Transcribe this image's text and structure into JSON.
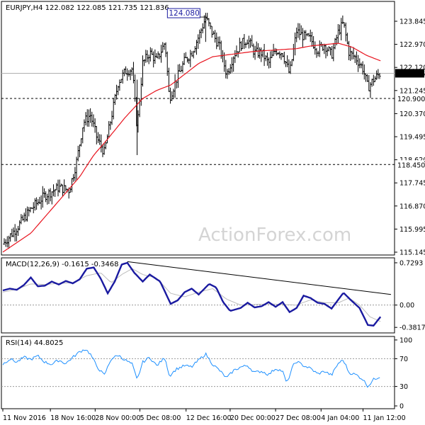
{
  "chart_data": [
    {
      "type": "candlestick",
      "title": "EURJPY,H4  122.082 122.085 121.735 121.836",
      "watermark": "ActionForex.com",
      "ylim": [
        115.145,
        124.45
      ],
      "yticks": [
        "123.845",
        "122.970",
        "122.120",
        "121.245",
        "120.370",
        "119.495",
        "118.620",
        "117.745",
        "116.870",
        "115.995",
        "115.145"
      ],
      "price_labels": {
        "last": "121.836",
        "high_label": "124.080",
        "support1": "120.900",
        "support2": "118.450"
      },
      "levels": {
        "high": 124.08,
        "support1": 120.9,
        "support2": 118.45,
        "last": 121.836
      },
      "ma_series": {
        "name": "",
        "color": "#e8141e",
        "points": [
          [
            0,
            115.2
          ],
          [
            40,
            115.9
          ],
          [
            80,
            117.1
          ],
          [
            110,
            118.0
          ],
          [
            130,
            118.8
          ],
          [
            150,
            119.4
          ],
          [
            175,
            120.2
          ],
          [
            200,
            120.9
          ],
          [
            220,
            121.2
          ],
          [
            240,
            121.4
          ],
          [
            260,
            121.8
          ],
          [
            280,
            122.2
          ],
          [
            300,
            122.45
          ],
          [
            330,
            122.55
          ],
          [
            360,
            122.65
          ],
          [
            390,
            122.7
          ],
          [
            420,
            122.75
          ],
          [
            440,
            122.85
          ],
          [
            460,
            122.9
          ],
          [
            480,
            122.95
          ],
          [
            500,
            122.8
          ],
          [
            520,
            122.5
          ],
          [
            540,
            122.3
          ]
        ]
      },
      "price_path": [
        [
          0,
          115.5
        ],
        [
          20,
          116.1
        ],
        [
          40,
          116.8
        ],
        [
          60,
          117.3
        ],
        [
          80,
          117.6
        ],
        [
          95,
          117.5
        ],
        [
          105,
          118.5
        ],
        [
          115,
          120.0
        ],
        [
          125,
          120.3
        ],
        [
          135,
          119.4
        ],
        [
          145,
          118.9
        ],
        [
          155,
          120.2
        ],
        [
          165,
          121.5
        ],
        [
          175,
          121.9
        ],
        [
          185,
          122.0
        ],
        [
          192,
          119.8
        ],
        [
          200,
          122.2
        ],
        [
          210,
          122.6
        ],
        [
          220,
          122.3
        ],
        [
          232,
          123.0
        ],
        [
          238,
          120.9
        ],
        [
          248,
          121.6
        ],
        [
          260,
          122.3
        ],
        [
          270,
          122.6
        ],
        [
          280,
          123.2
        ],
        [
          290,
          123.9
        ],
        [
          300,
          123.3
        ],
        [
          310,
          122.8
        ],
        [
          320,
          121.8
        ],
        [
          330,
          122.5
        ],
        [
          340,
          122.9
        ],
        [
          350,
          123.1
        ],
        [
          360,
          122.6
        ],
        [
          370,
          122.6
        ],
        [
          380,
          122.2
        ],
        [
          390,
          122.7
        ],
        [
          400,
          122.6
        ],
        [
          410,
          121.8
        ],
        [
          420,
          123.4
        ],
        [
          430,
          123.2
        ],
        [
          440,
          123.1
        ],
        [
          450,
          122.7
        ],
        [
          460,
          122.9
        ],
        [
          470,
          122.5
        ],
        [
          480,
          123.4
        ],
        [
          487,
          123.7
        ],
        [
          495,
          122.6
        ],
        [
          505,
          122.4
        ],
        [
          515,
          122.0
        ],
        [
          522,
          121.3
        ],
        [
          530,
          121.6
        ],
        [
          540,
          121.85
        ]
      ]
    },
    {
      "type": "line",
      "title": "MACD(12,26,9) -0.1615 -0.3468",
      "ylim": [
        -0.45,
        0.78
      ],
      "yticks": [
        "0.7293",
        "0.00",
        "-0.3817"
      ],
      "macd_color": "#1a1aa0",
      "signal_color": "#bbbbbb",
      "macd": [
        [
          0,
          0.25
        ],
        [
          10,
          0.28
        ],
        [
          20,
          0.26
        ],
        [
          30,
          0.34
        ],
        [
          40,
          0.47
        ],
        [
          50,
          0.32
        ],
        [
          60,
          0.33
        ],
        [
          70,
          0.4
        ],
        [
          80,
          0.35
        ],
        [
          90,
          0.41
        ],
        [
          100,
          0.37
        ],
        [
          110,
          0.44
        ],
        [
          120,
          0.62
        ],
        [
          130,
          0.64
        ],
        [
          140,
          0.45
        ],
        [
          150,
          0.2
        ],
        [
          160,
          0.4
        ],
        [
          170,
          0.69
        ],
        [
          178,
          0.72
        ],
        [
          188,
          0.55
        ],
        [
          200,
          0.4
        ],
        [
          210,
          0.52
        ],
        [
          225,
          0.4
        ],
        [
          240,
          0.02
        ],
        [
          250,
          0.08
        ],
        [
          260,
          0.22
        ],
        [
          270,
          0.28
        ],
        [
          280,
          0.18
        ],
        [
          295,
          0.36
        ],
        [
          305,
          0.3
        ],
        [
          315,
          0.05
        ],
        [
          325,
          -0.1
        ],
        [
          340,
          -0.05
        ],
        [
          350,
          0.04
        ],
        [
          360,
          -0.04
        ],
        [
          370,
          -0.02
        ],
        [
          380,
          0.05
        ],
        [
          390,
          -0.03
        ],
        [
          400,
          0.05
        ],
        [
          410,
          -0.12
        ],
        [
          420,
          -0.05
        ],
        [
          430,
          0.16
        ],
        [
          440,
          0.12
        ],
        [
          450,
          0.04
        ],
        [
          460,
          0.02
        ],
        [
          470,
          -0.06
        ],
        [
          487,
          0.21
        ],
        [
          498,
          0.08
        ],
        [
          510,
          -0.05
        ],
        [
          522,
          -0.34
        ],
        [
          530,
          -0.35
        ],
        [
          540,
          -0.2
        ]
      ],
      "signal": [
        [
          0,
          0.22
        ],
        [
          20,
          0.27
        ],
        [
          40,
          0.36
        ],
        [
          60,
          0.35
        ],
        [
          80,
          0.37
        ],
        [
          100,
          0.38
        ],
        [
          120,
          0.5
        ],
        [
          140,
          0.55
        ],
        [
          155,
          0.38
        ],
        [
          170,
          0.52
        ],
        [
          185,
          0.62
        ],
        [
          200,
          0.52
        ],
        [
          220,
          0.46
        ],
        [
          240,
          0.2
        ],
        [
          260,
          0.14
        ],
        [
          280,
          0.22
        ],
        [
          300,
          0.28
        ],
        [
          320,
          0.1
        ],
        [
          340,
          0.0
        ],
        [
          360,
          0.01
        ],
        [
          380,
          0.02
        ],
        [
          400,
          0.01
        ],
        [
          420,
          0.0
        ],
        [
          440,
          0.09
        ],
        [
          460,
          0.04
        ],
        [
          480,
          0.04
        ],
        [
          495,
          0.12
        ],
        [
          510,
          0.0
        ],
        [
          525,
          -0.2
        ],
        [
          540,
          -0.28
        ]
      ],
      "trendline": [
        [
          178,
          0.74
        ],
        [
          555,
          0.18
        ]
      ]
    },
    {
      "type": "line",
      "title": "RSI(14) 44.8025",
      "ylim": [
        0,
        100
      ],
      "yticks": [
        "100",
        "70",
        "30",
        "0"
      ],
      "levels": [
        70,
        30
      ],
      "color": "#1e90ff",
      "rsi": [
        [
          0,
          62
        ],
        [
          10,
          70
        ],
        [
          20,
          65
        ],
        [
          30,
          72
        ],
        [
          40,
          69
        ],
        [
          50,
          74
        ],
        [
          60,
          65
        ],
        [
          70,
          62
        ],
        [
          80,
          68
        ],
        [
          90,
          63
        ],
        [
          100,
          72
        ],
        [
          110,
          80
        ],
        [
          118,
          84
        ],
        [
          125,
          77
        ],
        [
          135,
          58
        ],
        [
          145,
          46
        ],
        [
          155,
          70
        ],
        [
          165,
          75
        ],
        [
          175,
          68
        ],
        [
          185,
          62
        ],
        [
          192,
          39
        ],
        [
          200,
          65
        ],
        [
          210,
          72
        ],
        [
          220,
          60
        ],
        [
          232,
          72
        ],
        [
          238,
          45
        ],
        [
          248,
          55
        ],
        [
          260,
          60
        ],
        [
          270,
          58
        ],
        [
          280,
          68
        ],
        [
          290,
          77
        ],
        [
          300,
          62
        ],
        [
          310,
          53
        ],
        [
          320,
          42
        ],
        [
          330,
          53
        ],
        [
          340,
          58
        ],
        [
          350,
          60
        ],
        [
          360,
          50
        ],
        [
          370,
          52
        ],
        [
          380,
          47
        ],
        [
          390,
          56
        ],
        [
          400,
          52
        ],
        [
          406,
          34
        ],
        [
          415,
          60
        ],
        [
          420,
          66
        ],
        [
          430,
          60
        ],
        [
          440,
          56
        ],
        [
          450,
          48
        ],
        [
          460,
          52
        ],
        [
          470,
          46
        ],
        [
          480,
          64
        ],
        [
          487,
          68
        ],
        [
          495,
          50
        ],
        [
          505,
          47
        ],
        [
          515,
          40
        ],
        [
          522,
          30
        ],
        [
          530,
          40
        ],
        [
          540,
          44.8
        ]
      ]
    }
  ],
  "x_ticks": [
    "11 Nov 2016",
    "18 Nov 16:00",
    "28 Nov 00:00",
    "5 Dec 08:00",
    "12 Dec 16:00",
    "20 Dec 00:00",
    "27 Dec 08:00",
    "4 Jan 04:00",
    "11 Jan 12:00"
  ]
}
